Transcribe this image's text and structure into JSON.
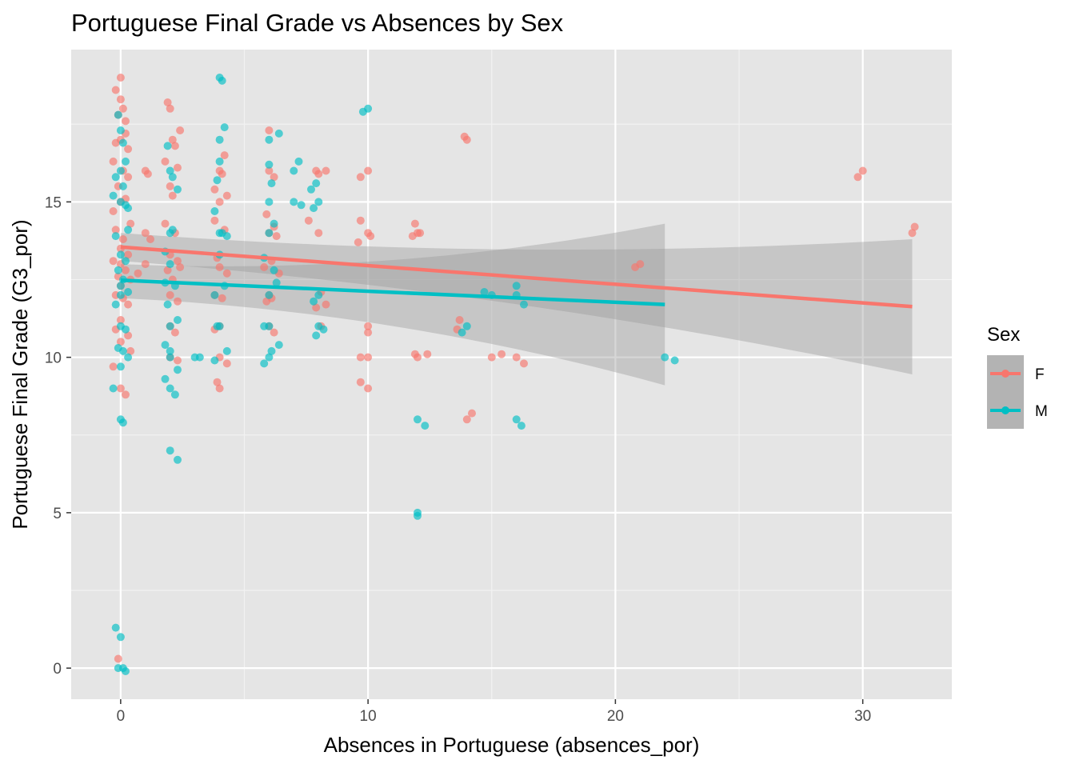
{
  "chart_data": {
    "type": "scatter",
    "title": "Portuguese Final Grade vs Absences by Sex",
    "xlabel": "Absences in Portuguese (absences_por)",
    "ylabel": "Portuguese Final Grade (G3_por)",
    "xlim": [
      -2,
      33.6
    ],
    "ylim": [
      -1,
      19.9
    ],
    "x_ticks": [
      0,
      10,
      20,
      30
    ],
    "y_ticks": [
      0,
      5,
      10,
      15
    ],
    "x_tick_labels": [
      "0",
      "10",
      "20",
      "30"
    ],
    "y_tick_labels": [
      "0",
      "5",
      "10",
      "15"
    ],
    "grid": true,
    "panel_background": "#e5e5e5",
    "legend": {
      "title": "Sex",
      "position": "right"
    },
    "series": [
      {
        "name": "F",
        "color": "#f8766d",
        "points": [
          [
            0,
            19
          ],
          [
            -0.2,
            18.6
          ],
          [
            0,
            18.3
          ],
          [
            0.1,
            18
          ],
          [
            -0.1,
            17.8
          ],
          [
            0.2,
            17.6
          ],
          [
            0,
            17
          ],
          [
            0.2,
            17.2
          ],
          [
            -0.2,
            16.9
          ],
          [
            0.3,
            16.7
          ],
          [
            -0.3,
            16.3
          ],
          [
            0.1,
            16
          ],
          [
            0.3,
            15.8
          ],
          [
            -0.1,
            15.5
          ],
          [
            0,
            15
          ],
          [
            0.2,
            15.1
          ],
          [
            -0.3,
            14.7
          ],
          [
            0.4,
            14.3
          ],
          [
            -0.2,
            14.1
          ],
          [
            0.1,
            13.8
          ],
          [
            0,
            13.5
          ],
          [
            0.3,
            13.3
          ],
          [
            -0.3,
            13.1
          ],
          [
            0,
            13
          ],
          [
            0.2,
            12.8
          ],
          [
            -0.1,
            12.6
          ],
          [
            0.4,
            12.5
          ],
          [
            0,
            12.3
          ],
          [
            -0.2,
            12
          ],
          [
            0.1,
            11.9
          ],
          [
            0.3,
            11.7
          ],
          [
            0,
            11.2
          ],
          [
            -0.2,
            10.9
          ],
          [
            0.3,
            10.7
          ],
          [
            0,
            10.5
          ],
          [
            0.4,
            10.2
          ],
          [
            -0.3,
            9.7
          ],
          [
            0,
            9
          ],
          [
            0.2,
            8.8
          ],
          [
            -0.1,
            0.3
          ],
          [
            0.7,
            12.7
          ],
          [
            1,
            16
          ],
          [
            1.1,
            15.9
          ],
          [
            1,
            14
          ],
          [
            1.2,
            13.8
          ],
          [
            1,
            13
          ],
          [
            1.9,
            18.2
          ],
          [
            2,
            18
          ],
          [
            2.1,
            17
          ],
          [
            2.2,
            16.8
          ],
          [
            1.8,
            16.3
          ],
          [
            2.3,
            16.1
          ],
          [
            2,
            15.5
          ],
          [
            2.1,
            15.2
          ],
          [
            1.8,
            14.3
          ],
          [
            2.2,
            14
          ],
          [
            2,
            13.3
          ],
          [
            2.3,
            13.1
          ],
          [
            1.9,
            12.8
          ],
          [
            2.1,
            12.5
          ],
          [
            2,
            12
          ],
          [
            2.3,
            11.8
          ],
          [
            2,
            11
          ],
          [
            2.2,
            10.8
          ],
          [
            2,
            10
          ],
          [
            2.3,
            9.9
          ],
          [
            2.4,
            17.3
          ],
          [
            2.4,
            12.9
          ],
          [
            4,
            16
          ],
          [
            4.1,
            15.9
          ],
          [
            4,
            15
          ],
          [
            4.3,
            15.2
          ],
          [
            3.8,
            14.4
          ],
          [
            4.2,
            14.1
          ],
          [
            3.9,
            13.2
          ],
          [
            4,
            12.9
          ],
          [
            4.3,
            12.7
          ],
          [
            3.8,
            12
          ],
          [
            4.1,
            11.9
          ],
          [
            4,
            11
          ],
          [
            3.8,
            10.9
          ],
          [
            4,
            10
          ],
          [
            4.3,
            9.8
          ],
          [
            4,
            9
          ],
          [
            3.9,
            9.2
          ],
          [
            4.2,
            16.5
          ],
          [
            3.8,
            15.4
          ],
          [
            6,
            17.3
          ],
          [
            6,
            16
          ],
          [
            6.2,
            15.8
          ],
          [
            5.9,
            14.6
          ],
          [
            6,
            14
          ],
          [
            6.3,
            13.9
          ],
          [
            6.1,
            13.1
          ],
          [
            5.8,
            12.9
          ],
          [
            6,
            12
          ],
          [
            6.1,
            11.9
          ],
          [
            6,
            11
          ],
          [
            6.2,
            10.8
          ],
          [
            5.9,
            11.8
          ],
          [
            6.4,
            12.7
          ],
          [
            6.2,
            14.2
          ],
          [
            7.9,
            16
          ],
          [
            8,
            15.9
          ],
          [
            8.3,
            16
          ],
          [
            8,
            14
          ],
          [
            7.6,
            14.4
          ],
          [
            8.1,
            12.1
          ],
          [
            7.9,
            11.6
          ],
          [
            8.3,
            11.7
          ],
          [
            8.1,
            11
          ],
          [
            9.7,
            15.8
          ],
          [
            10,
            16
          ],
          [
            9.7,
            14.4
          ],
          [
            10,
            14
          ],
          [
            9.6,
            13.7
          ],
          [
            10.1,
            13.9
          ],
          [
            10,
            11
          ],
          [
            10,
            10.8
          ],
          [
            9.7,
            10
          ],
          [
            10,
            10
          ],
          [
            9.7,
            9.2
          ],
          [
            10,
            9
          ],
          [
            11.9,
            14.3
          ],
          [
            12,
            14
          ],
          [
            11.8,
            13.9
          ],
          [
            12.1,
            14
          ],
          [
            11.9,
            10.1
          ],
          [
            12,
            10
          ],
          [
            12.4,
            10.1
          ],
          [
            14,
            17
          ],
          [
            13.9,
            17.1
          ],
          [
            13.7,
            11.2
          ],
          [
            13.6,
            10.9
          ],
          [
            14,
            8
          ],
          [
            14.2,
            8.2
          ],
          [
            15,
            10
          ],
          [
            15.4,
            10.1
          ],
          [
            16,
            10
          ],
          [
            16.3,
            9.8
          ],
          [
            20.8,
            12.9
          ],
          [
            21,
            13
          ],
          [
            29.8,
            15.8
          ],
          [
            30,
            16
          ],
          [
            32,
            14
          ],
          [
            32.1,
            14.2
          ]
        ]
      },
      {
        "name": "M",
        "color": "#00bfc4",
        "points": [
          [
            0,
            17.3
          ],
          [
            -0.1,
            17.8
          ],
          [
            0.1,
            16.9
          ],
          [
            0,
            16
          ],
          [
            0.2,
            16.3
          ],
          [
            -0.2,
            15.8
          ],
          [
            0.1,
            15.5
          ],
          [
            -0.3,
            15.2
          ],
          [
            0,
            15
          ],
          [
            0.2,
            14.9
          ],
          [
            0.3,
            14.1
          ],
          [
            -0.2,
            13.9
          ],
          [
            0,
            13.3
          ],
          [
            0.2,
            13.1
          ],
          [
            -0.1,
            12.8
          ],
          [
            0.1,
            12.5
          ],
          [
            0,
            12.3
          ],
          [
            0.3,
            12.1
          ],
          [
            0,
            12
          ],
          [
            -0.2,
            11.7
          ],
          [
            0,
            11
          ],
          [
            0.2,
            10.9
          ],
          [
            -0.1,
            10.3
          ],
          [
            0.1,
            10.2
          ],
          [
            0.3,
            10
          ],
          [
            0,
            9.7
          ],
          [
            -0.3,
            9
          ],
          [
            0,
            8
          ],
          [
            0.1,
            7.9
          ],
          [
            -0.2,
            1.3
          ],
          [
            0,
            1
          ],
          [
            -0.1,
            0
          ],
          [
            0.1,
            0
          ],
          [
            0.2,
            -0.1
          ],
          [
            0.3,
            14.8
          ],
          [
            2,
            16
          ],
          [
            1.9,
            16.8
          ],
          [
            2.1,
            15.8
          ],
          [
            2.3,
            15.4
          ],
          [
            2,
            14
          ],
          [
            2.1,
            14.1
          ],
          [
            1.8,
            13.4
          ],
          [
            2,
            13
          ],
          [
            1.8,
            12.4
          ],
          [
            2.2,
            12.3
          ],
          [
            1.9,
            11.7
          ],
          [
            2,
            11
          ],
          [
            2.3,
            11.2
          ],
          [
            1.8,
            10.4
          ],
          [
            2,
            10.2
          ],
          [
            2,
            10
          ],
          [
            2.3,
            9.6
          ],
          [
            1.8,
            9.3
          ],
          [
            2,
            9
          ],
          [
            2.2,
            8.8
          ],
          [
            2,
            7
          ],
          [
            2.3,
            6.7
          ],
          [
            3,
            10
          ],
          [
            3.2,
            10
          ],
          [
            4,
            19
          ],
          [
            4.1,
            18.9
          ],
          [
            4,
            17
          ],
          [
            4.2,
            17.4
          ],
          [
            4,
            16.3
          ],
          [
            3.9,
            15.7
          ],
          [
            3.8,
            14.7
          ],
          [
            4,
            14
          ],
          [
            4.1,
            14
          ],
          [
            4.3,
            13.9
          ],
          [
            4,
            13.3
          ],
          [
            4.2,
            12.3
          ],
          [
            3.8,
            12
          ],
          [
            4,
            11
          ],
          [
            3.9,
            11
          ],
          [
            4.3,
            10.2
          ],
          [
            3.8,
            9.9
          ],
          [
            6,
            17
          ],
          [
            6.4,
            17.2
          ],
          [
            6,
            16.2
          ],
          [
            6.1,
            15.6
          ],
          [
            6,
            15
          ],
          [
            6.2,
            14.3
          ],
          [
            6,
            14
          ],
          [
            5.8,
            13.2
          ],
          [
            6.2,
            12.8
          ],
          [
            6,
            12
          ],
          [
            6.3,
            12.4
          ],
          [
            6,
            11
          ],
          [
            5.8,
            11
          ],
          [
            6,
            10
          ],
          [
            6.1,
            10.2
          ],
          [
            5.8,
            9.8
          ],
          [
            6.4,
            10.4
          ],
          [
            7,
            16
          ],
          [
            7.2,
            16.3
          ],
          [
            7,
            15
          ],
          [
            7.3,
            14.9
          ],
          [
            7.8,
            14.8
          ],
          [
            8,
            15
          ],
          [
            7.9,
            15.6
          ],
          [
            7.7,
            15.4
          ],
          [
            7.8,
            11.8
          ],
          [
            8,
            11
          ],
          [
            8.2,
            10.9
          ],
          [
            7.9,
            10.7
          ],
          [
            8,
            12
          ],
          [
            9.8,
            17.9
          ],
          [
            10,
            18
          ],
          [
            12,
            8
          ],
          [
            12.3,
            7.8
          ],
          [
            12,
            5
          ],
          [
            12,
            4.9
          ],
          [
            14,
            11
          ],
          [
            13.8,
            10.8
          ],
          [
            14.7,
            12.1
          ],
          [
            15,
            12
          ],
          [
            16,
            12.3
          ],
          [
            16,
            12
          ],
          [
            16.3,
            11.7
          ],
          [
            16,
            8
          ],
          [
            16.2,
            7.8
          ],
          [
            22,
            10
          ],
          [
            22.4,
            9.9
          ]
        ]
      }
    ],
    "fits": [
      {
        "name": "F",
        "color": "#f8766d",
        "x": [
          0,
          32
        ],
        "y": [
          13.55,
          11.63
        ],
        "ci_lower": [
          13.1,
          9.45
        ],
        "ci_upper": [
          14.0,
          13.8
        ]
      },
      {
        "name": "M",
        "color": "#00bfc4",
        "x": [
          0,
          22
        ],
        "y": [
          12.48,
          11.7
        ],
        "ci_lower": [
          11.9,
          9.1
        ],
        "ci_upper": [
          13.0,
          14.3
        ]
      }
    ]
  }
}
